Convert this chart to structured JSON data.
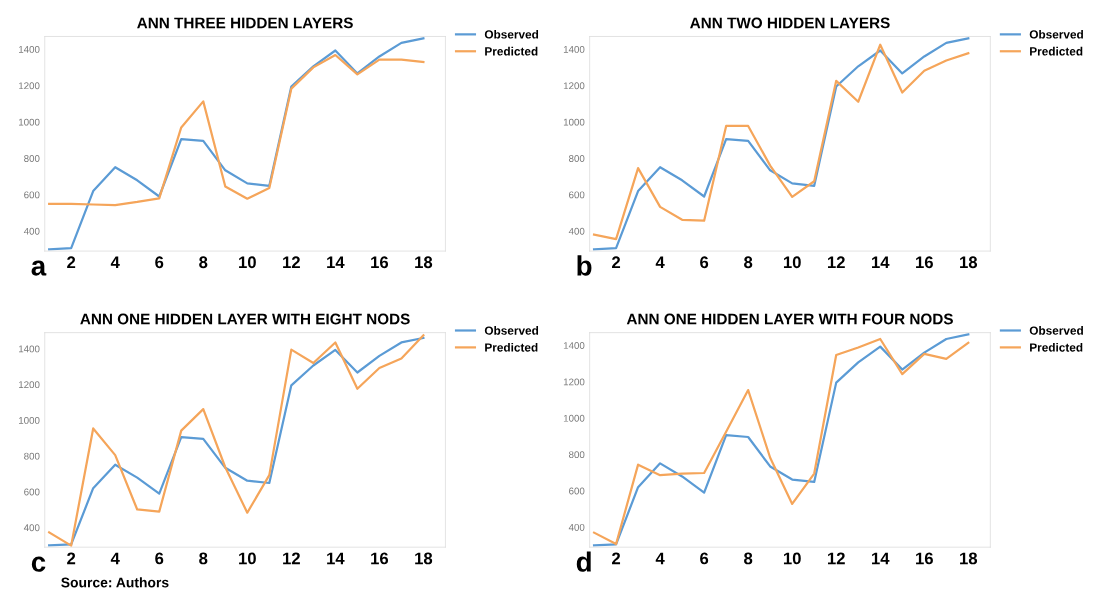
{
  "chart_data": [
    {
      "type": "line",
      "title": "ANN THREE HIDDEN LAYERS",
      "x": [
        1,
        2,
        3,
        4,
        5,
        6,
        7,
        8,
        9,
        10,
        11,
        12,
        13,
        14,
        15,
        16,
        17,
        18
      ],
      "xlim": [
        0.8,
        19
      ],
      "xticks": [
        2,
        4,
        6,
        8,
        10,
        12,
        14,
        16,
        18
      ],
      "ylim": [
        290,
        1470
      ],
      "yticks": [
        400,
        600,
        800,
        1000,
        1200,
        1400
      ],
      "grid": false,
      "legend": "top right",
      "marker": "none",
      "line_style": "solid",
      "annotations": [
        "a"
      ],
      "series": [
        {
          "name": "Observed",
          "color": "#5b9bd5",
          "values": [
            300,
            306,
            620,
            751,
            679,
            590,
            906,
            896,
            734,
            662,
            649,
            1195,
            1306,
            1393,
            1267,
            1360,
            1435,
            1460
          ]
        },
        {
          "name": "Predicted",
          "color": "#f5a55a",
          "values": [
            550,
            550,
            546,
            543,
            560,
            580,
            970,
            1113,
            645,
            578,
            637,
            1183,
            1300,
            1368,
            1262,
            1343,
            1343,
            1330
          ]
        }
      ]
    },
    {
      "type": "line",
      "title": "ANN TWO HIDDEN LAYERS",
      "x": [
        1,
        2,
        3,
        4,
        5,
        6,
        7,
        8,
        9,
        10,
        11,
        12,
        13,
        14,
        15,
        16,
        17,
        18
      ],
      "xlim": [
        0.8,
        19
      ],
      "xticks": [
        2,
        4,
        6,
        8,
        10,
        12,
        14,
        16,
        18
      ],
      "ylim": [
        290,
        1470
      ],
      "yticks": [
        400,
        600,
        800,
        1000,
        1200,
        1400
      ],
      "grid": false,
      "legend": "top right",
      "marker": "none",
      "line_style": "solid",
      "annotations": [
        "b"
      ],
      "series": [
        {
          "name": "Observed",
          "color": "#5b9bd5",
          "values": [
            300,
            306,
            620,
            751,
            679,
            590,
            906,
            896,
            734,
            662,
            649,
            1195,
            1306,
            1393,
            1267,
            1360,
            1435,
            1460
          ]
        },
        {
          "name": "Predicted",
          "color": "#f5a55a",
          "values": [
            381,
            356,
            746,
            533,
            462,
            457,
            978,
            978,
            760,
            588,
            674,
            1226,
            1111,
            1425,
            1162,
            1282,
            1338,
            1378
          ]
        }
      ]
    },
    {
      "type": "line",
      "title": "ANN ONE HIDDEN LAYER WITH EIGHT NODS",
      "x": [
        1,
        2,
        3,
        4,
        5,
        6,
        7,
        8,
        9,
        10,
        11,
        12,
        13,
        14,
        15,
        16,
        17,
        18
      ],
      "xlim": [
        0.8,
        19
      ],
      "xticks": [
        2,
        4,
        6,
        8,
        10,
        12,
        14,
        16,
        18
      ],
      "ylim": [
        290,
        1490
      ],
      "yticks": [
        400,
        600,
        800,
        1000,
        1200,
        1400
      ],
      "grid": false,
      "legend": "top right",
      "marker": "none",
      "line_style": "solid",
      "annotations": [
        "c",
        "Source: Authors"
      ],
      "series": [
        {
          "name": "Observed",
          "color": "#5b9bd5",
          "values": [
            300,
            306,
            620,
            751,
            679,
            590,
            906,
            896,
            734,
            662,
            649,
            1195,
            1306,
            1393,
            1267,
            1360,
            1435,
            1460
          ]
        },
        {
          "name": "Predicted",
          "color": "#f5a55a",
          "values": [
            373,
            299,
            954,
            805,
            501,
            489,
            942,
            1062,
            737,
            483,
            693,
            1395,
            1320,
            1435,
            1176,
            1292,
            1345,
            1475
          ]
        }
      ]
    },
    {
      "type": "line",
      "title": "ANN ONE HIDDEN LAYER WITH FOUR NODS",
      "x": [
        1,
        2,
        3,
        4,
        5,
        6,
        7,
        8,
        9,
        10,
        11,
        12,
        13,
        14,
        15,
        16,
        17,
        18
      ],
      "xlim": [
        0.8,
        19
      ],
      "xticks": [
        2,
        4,
        6,
        8,
        10,
        12,
        14,
        16,
        18
      ],
      "ylim": [
        290,
        1470
      ],
      "yticks": [
        400,
        600,
        800,
        1000,
        1200,
        1400
      ],
      "grid": false,
      "legend": "top right",
      "marker": "none",
      "line_style": "solid",
      "annotations": [
        "d"
      ],
      "series": [
        {
          "name": "Observed",
          "color": "#5b9bd5",
          "values": [
            300,
            306,
            620,
            751,
            679,
            590,
            906,
            896,
            734,
            662,
            649,
            1195,
            1306,
            1393,
            1267,
            1360,
            1435,
            1460
          ]
        },
        {
          "name": "Predicted",
          "color": "#f5a55a",
          "values": [
            370,
            307,
            744,
            686,
            695,
            698,
            925,
            1154,
            782,
            528,
            695,
            1347,
            1388,
            1435,
            1242,
            1353,
            1326,
            1414
          ]
        }
      ]
    }
  ]
}
